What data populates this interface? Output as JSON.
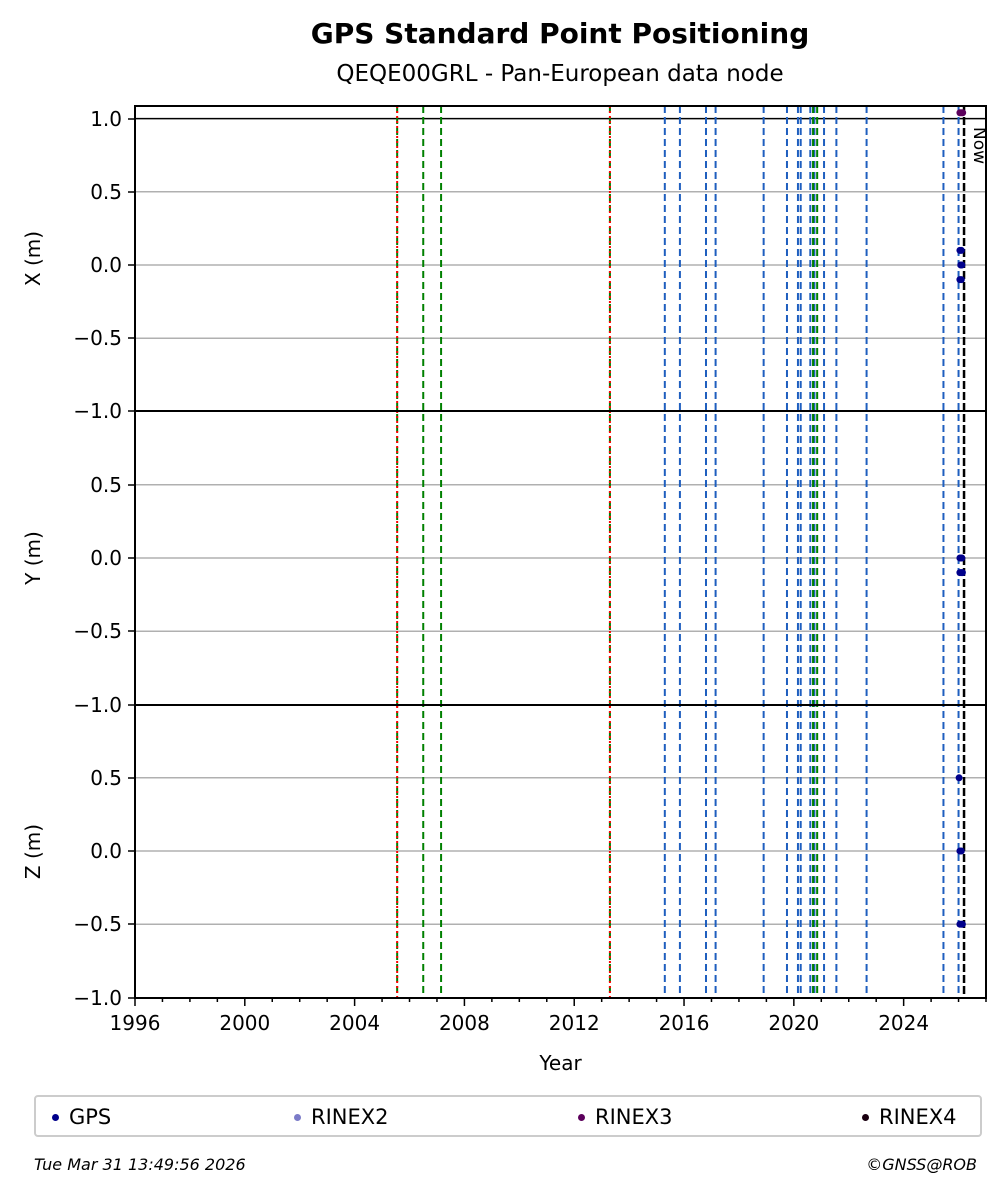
{
  "title": "GPS Standard Point Positioning",
  "subtitle": "QEQE00GRL - Pan-European data node",
  "now_label": "Now",
  "footer": {
    "timestamp": "Tue Mar 31 13:49:56 2026",
    "copyright": "©GNSS@ROB"
  },
  "legend": [
    {
      "name": "GPS",
      "color": "#00008b"
    },
    {
      "name": "RINEX2",
      "color": "#7b7bc8"
    },
    {
      "name": "RINEX3",
      "color": "#5c005c"
    },
    {
      "name": "RINEX4",
      "color": "#1a0010"
    }
  ],
  "chart_data": {
    "type": "scatter",
    "xlabel": "Year",
    "xlim": [
      1996,
      2027
    ],
    "x_ticks": [
      1996,
      2000,
      2004,
      2008,
      2012,
      2016,
      2020,
      2024
    ],
    "grid": true,
    "panels": [
      {
        "ylabel": "X (m)",
        "ylim": [
          -1.0,
          1.0
        ],
        "y_ticks": [
          "1.0",
          "0.5",
          "0.0",
          "−0.5"
        ],
        "series": [
          {
            "name": "GPS",
            "x": [
              2026.05,
              2026.08,
              2026.1,
              2026.12,
              2026.05,
              2026.1
            ],
            "y": [
              0.1,
              0.0,
              -0.1,
              0.0,
              -0.1,
              0.1
            ]
          },
          {
            "name": "RINEX3",
            "x": [
              2026.05,
              2026.1,
              2026.15
            ],
            "y": [
              1.04,
              1.04,
              1.04
            ]
          }
        ]
      },
      {
        "ylabel": "Y (m)",
        "ylim": [
          -1.0,
          1.0
        ],
        "y_ticks": [
          "−1.0",
          "0.5",
          "0.0",
          "−0.5"
        ],
        "series": [
          {
            "name": "GPS",
            "x": [
              2026.05,
              2026.08,
              2026.12,
              2026.05,
              2026.1,
              2026.14
            ],
            "y": [
              0.0,
              0.0,
              0.0,
              -0.1,
              -0.1,
              -0.1
            ]
          }
        ]
      },
      {
        "ylabel": "Z (m)",
        "ylim": [
          -1.0,
          1.0
        ],
        "y_ticks": [
          "−1.0",
          "0.5",
          "0.0",
          "−0.5",
          "−1.0"
        ],
        "series": [
          {
            "name": "GPS",
            "x": [
              2026.02,
              2026.05,
              2026.1,
              2026.05,
              2026.1,
              2026.14
            ],
            "y": [
              0.5,
              0.0,
              0.0,
              -0.5,
              -0.5,
              -0.5
            ]
          }
        ]
      }
    ],
    "events": {
      "receiver_antenna_changes": [
        2005.55,
        2013.3
      ],
      "green_changes": [
        2005.55,
        2006.5,
        2007.15,
        2013.3,
        2020.7,
        2020.85
      ],
      "blue_changes": [
        2015.3,
        2015.85,
        2016.8,
        2017.15,
        2018.9,
        2019.75,
        2020.15,
        2020.25,
        2020.6,
        2020.75,
        2021.1,
        2021.55,
        2022.65,
        2025.45,
        2026.0
      ],
      "now": 2026.2
    },
    "event_colors": {
      "red": "#ff0000",
      "green": "#008000",
      "blue": "#1f5fbf",
      "now": "#000000"
    }
  }
}
